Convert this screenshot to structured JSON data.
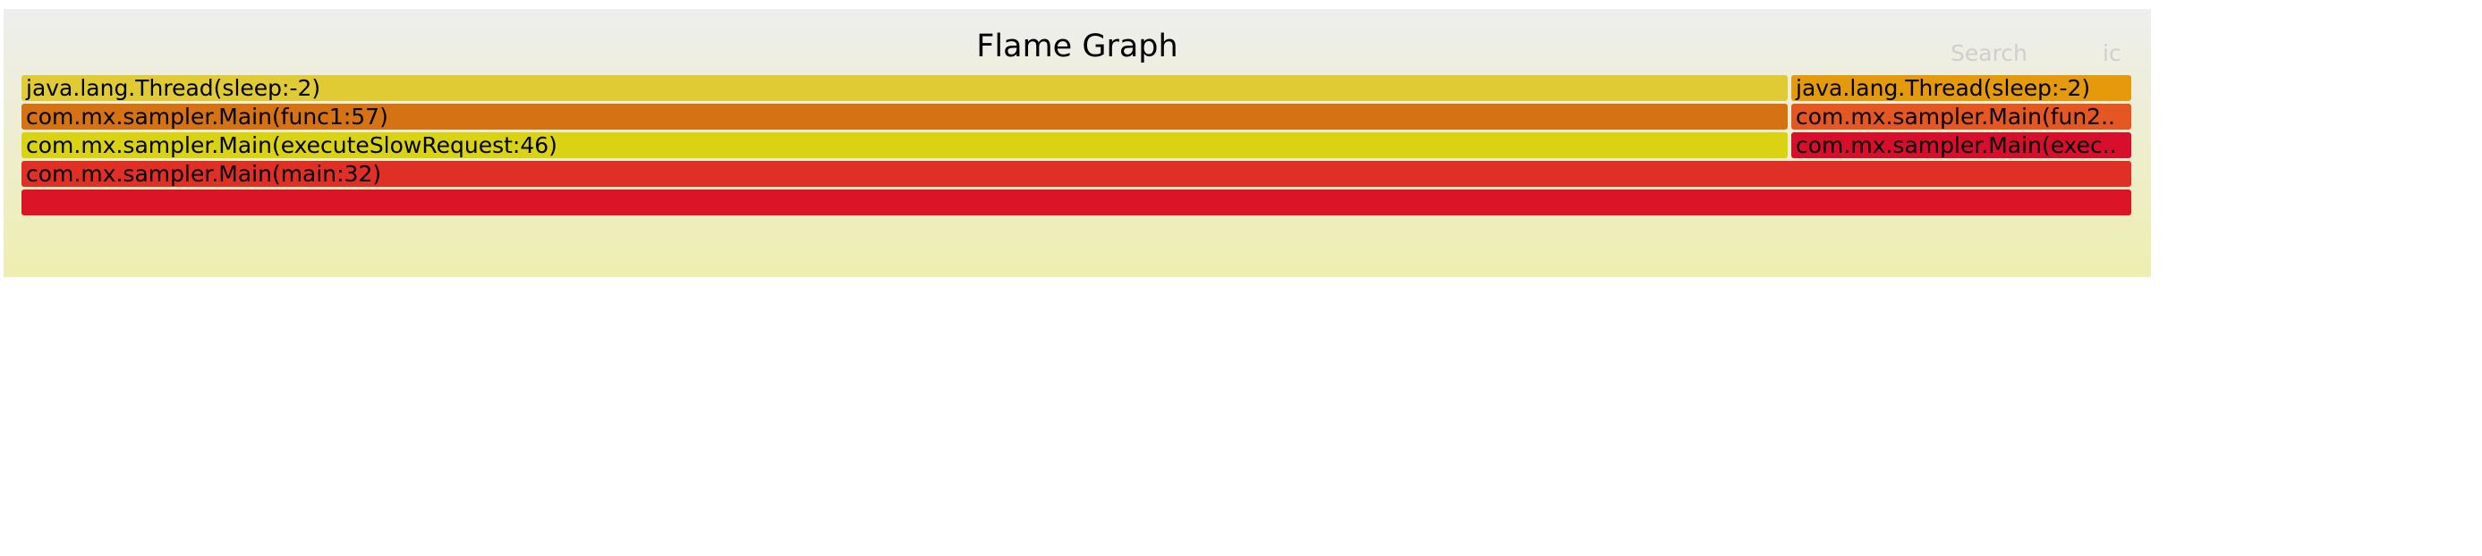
{
  "header": {
    "title": "Flame Graph",
    "search_label": "Search",
    "ic_label": "ic"
  },
  "colors": {
    "background_top": "#eeeeee",
    "background_bottom": "#eeeeb0"
  },
  "frames": [
    {
      "id": "f1",
      "label": "java.lang.Thread(sleep:-2)",
      "color": "#e0cb34"
    },
    {
      "id": "f2",
      "label": "java.lang.Thread(sleep:-2)",
      "color": "#e49a0a"
    },
    {
      "id": "f3",
      "label": "com.mx.sampler.Main(func1:57)",
      "color": "#d57314"
    },
    {
      "id": "f4",
      "label": "com.mx.sampler.Main(fun2..",
      "color": "#e55722"
    },
    {
      "id": "f5",
      "label": "com.mx.sampler.Main(executeSlowRequest:46)",
      "color": "#d9d314"
    },
    {
      "id": "f6",
      "label": "com.mx.sampler.Main(exec..",
      "color": "#d70f2c"
    },
    {
      "id": "f7",
      "label": "com.mx.sampler.Main(main:32)",
      "color": "#e02f25"
    },
    {
      "id": "f8",
      "label": "",
      "color": "#dc1428"
    }
  ]
}
